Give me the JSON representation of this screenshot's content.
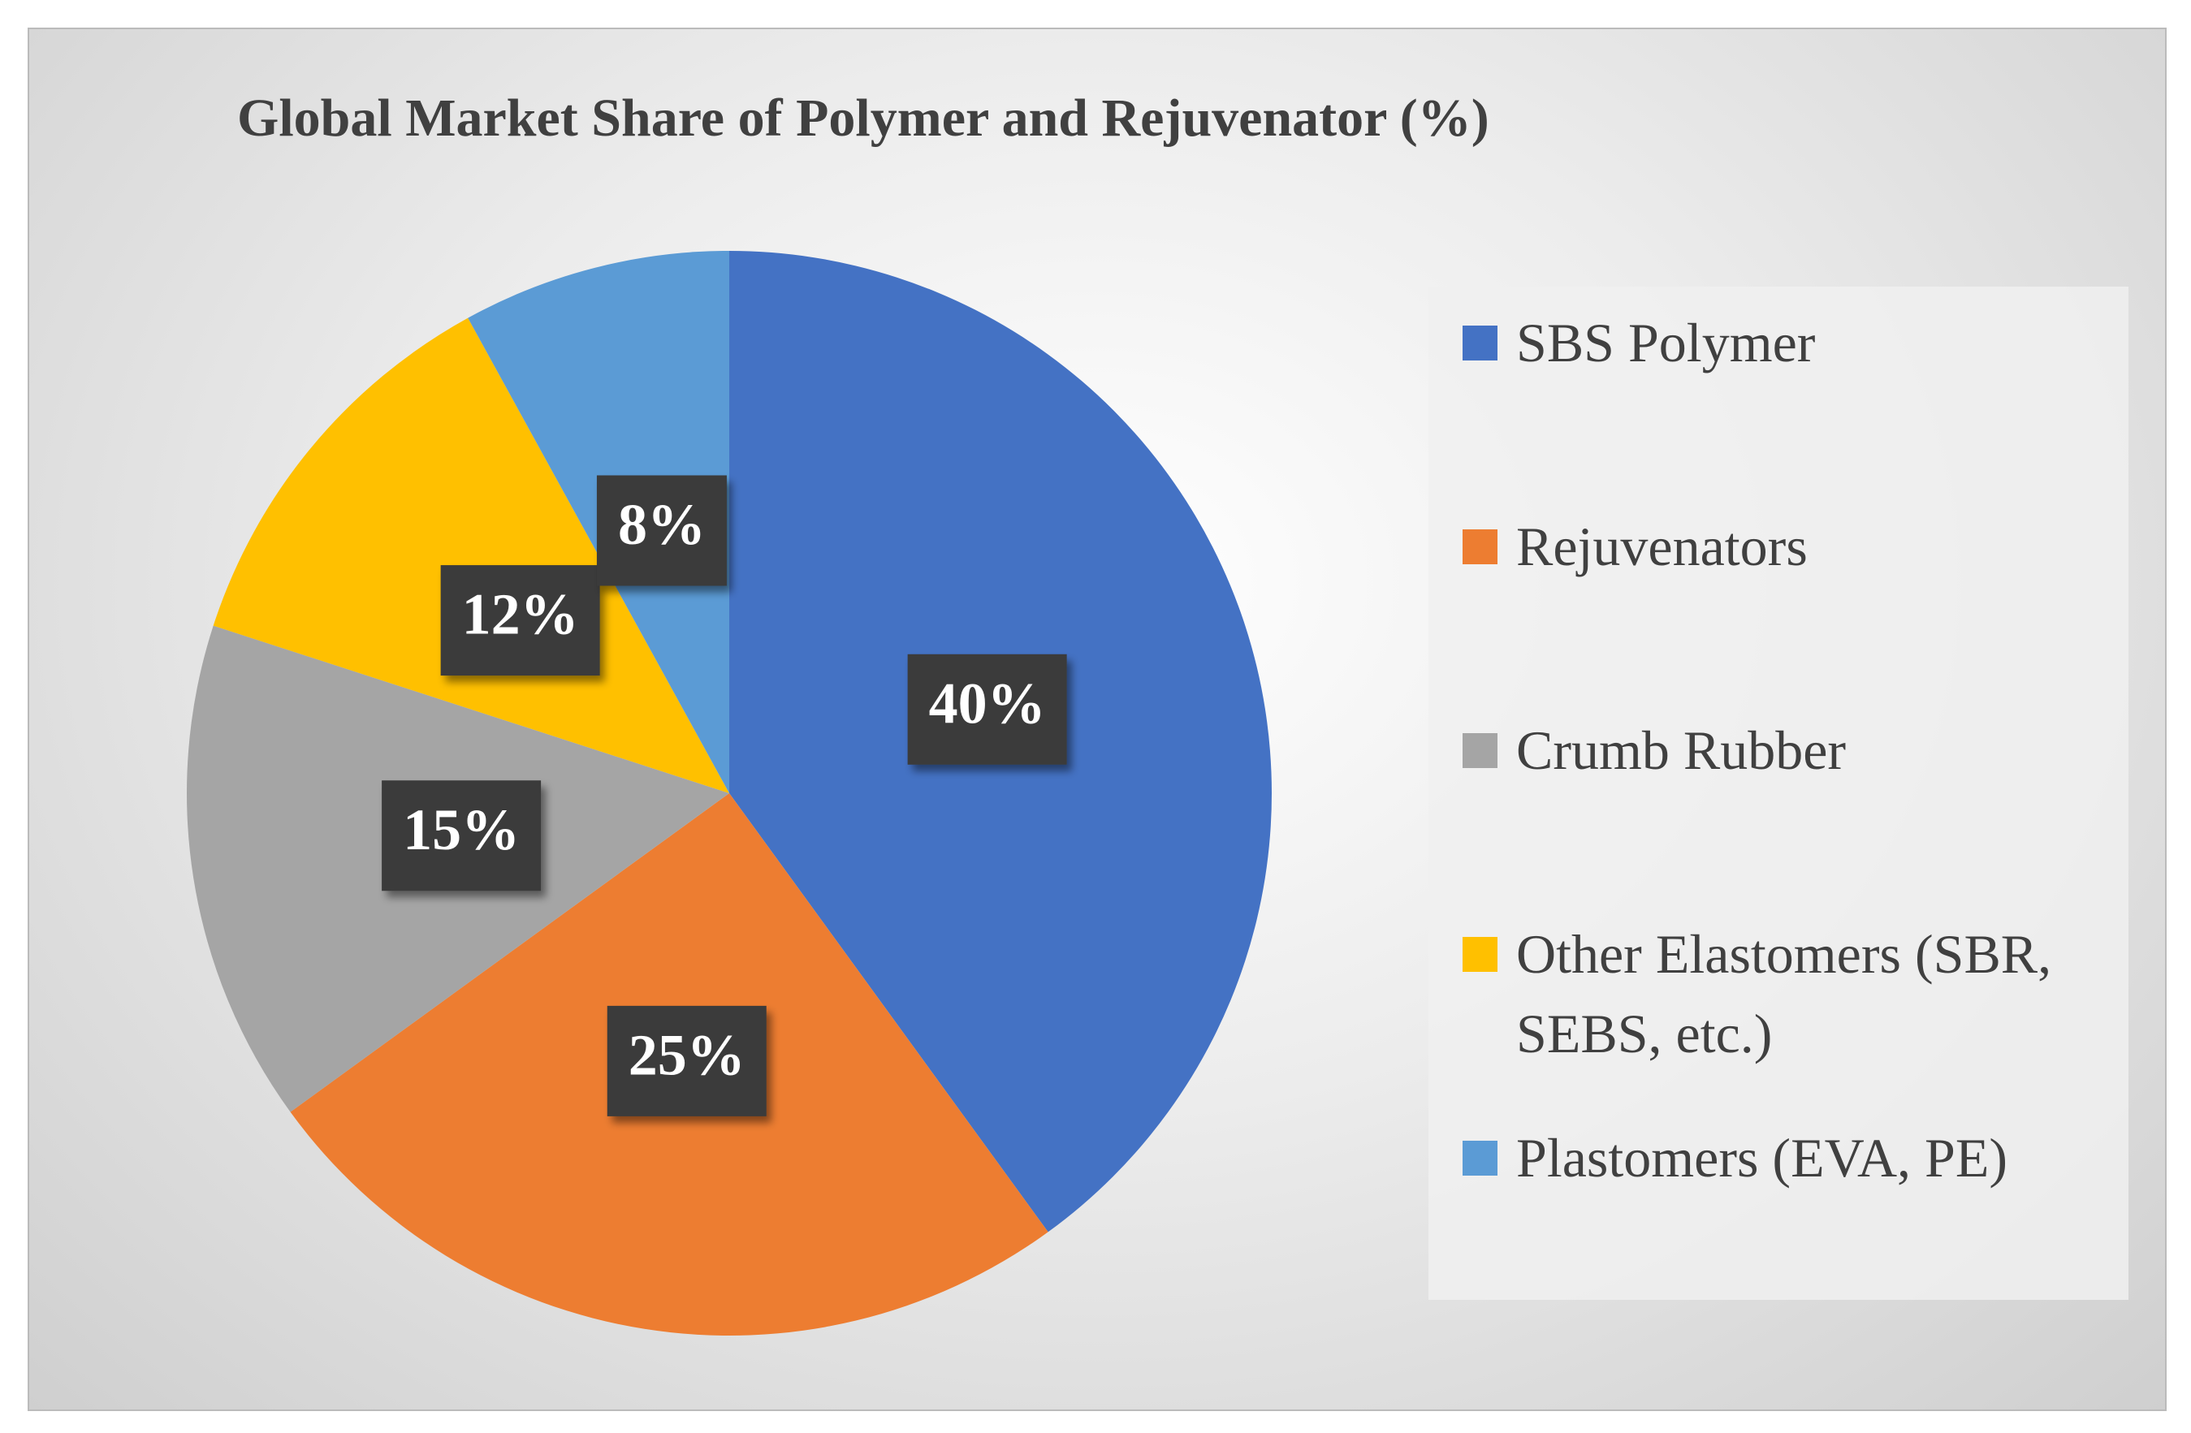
{
  "chart_data": {
    "type": "pie",
    "title": "Global Market Share of Polymer and Rejuvenator (%)",
    "categories": [
      "SBS Polymer",
      "Rejuvenators",
      "Crumb Rubber",
      "Other Elastomers (SBR, SEBS, etc.)",
      "Plastomers (EVA, PE)"
    ],
    "values": [
      40,
      25,
      15,
      12,
      8
    ],
    "value_labels": [
      "40%",
      "25%",
      "15%",
      "12%",
      "8%"
    ],
    "colors": [
      "#4472c4",
      "#ed7d31",
      "#a5a5a5",
      "#ffc000",
      "#5b9bd5"
    ],
    "legend": "right"
  }
}
